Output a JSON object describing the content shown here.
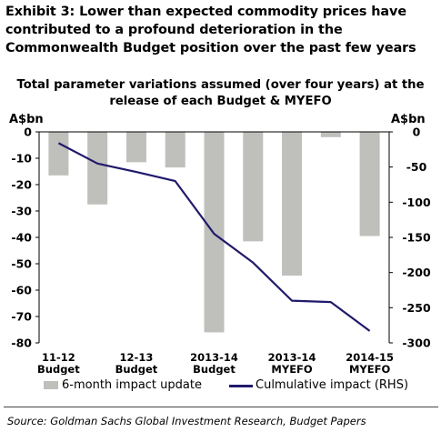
{
  "header": {
    "exhibit_title": "Exhibit 3: Lower than expected commodity prices have contributed to a profound deterioration in the Commonwealth Budget position over the past few years"
  },
  "colors": {
    "bar": "#bfbfbb",
    "line": "#201a6b",
    "axis": "#000000"
  },
  "chart_data": {
    "type": "bar",
    "title": "Total parameter variations assumed (over four years) at the release of each Budget & MYEFO",
    "ylabel": "A$bn",
    "y2label": "A$bn",
    "ylim": [
      -80,
      0
    ],
    "y2lim": [
      -300,
      0
    ],
    "yticks": [
      0,
      -10,
      -20,
      -30,
      -40,
      -50,
      -60,
      -70,
      -80
    ],
    "y2ticks": [
      0,
      -50,
      -100,
      -150,
      -200,
      -250,
      -300
    ],
    "categories": [
      "11-12",
      "",
      "12-13",
      "",
      "2013-14",
      "",
      "2013-14",
      "",
      "2014-15"
    ],
    "category_labels": [
      {
        "line1": "11-12",
        "line2": "Budget"
      },
      {
        "line1": "12-13",
        "line2": "Budget"
      },
      {
        "line1": "2013-14",
        "line2": "Budget"
      },
      {
        "line1": "2013-14",
        "line2": "MYEFO"
      },
      {
        "line1": "2014-15",
        "line2": "MYEFO"
      }
    ],
    "series": [
      {
        "name": "6-month impact update",
        "type": "bar",
        "axis": "left",
        "values": [
          -16.5,
          -27.5,
          -11.5,
          -13.5,
          -76,
          -41.5,
          -54.5,
          -2,
          -39.5
        ]
      },
      {
        "name": "Culmulative impact (RHS)",
        "type": "line",
        "axis": "right",
        "values": [
          -16,
          -45,
          -57,
          -70,
          -145,
          -186,
          -240,
          -242,
          -283
        ]
      }
    ],
    "legend_position": "bottom",
    "grid": false
  },
  "legend": {
    "bar_label": "6-month impact update",
    "line_label": "Culmulative impact (RHS)"
  },
  "source": "Source: Goldman Sachs Global Investment Research, Budget Papers"
}
